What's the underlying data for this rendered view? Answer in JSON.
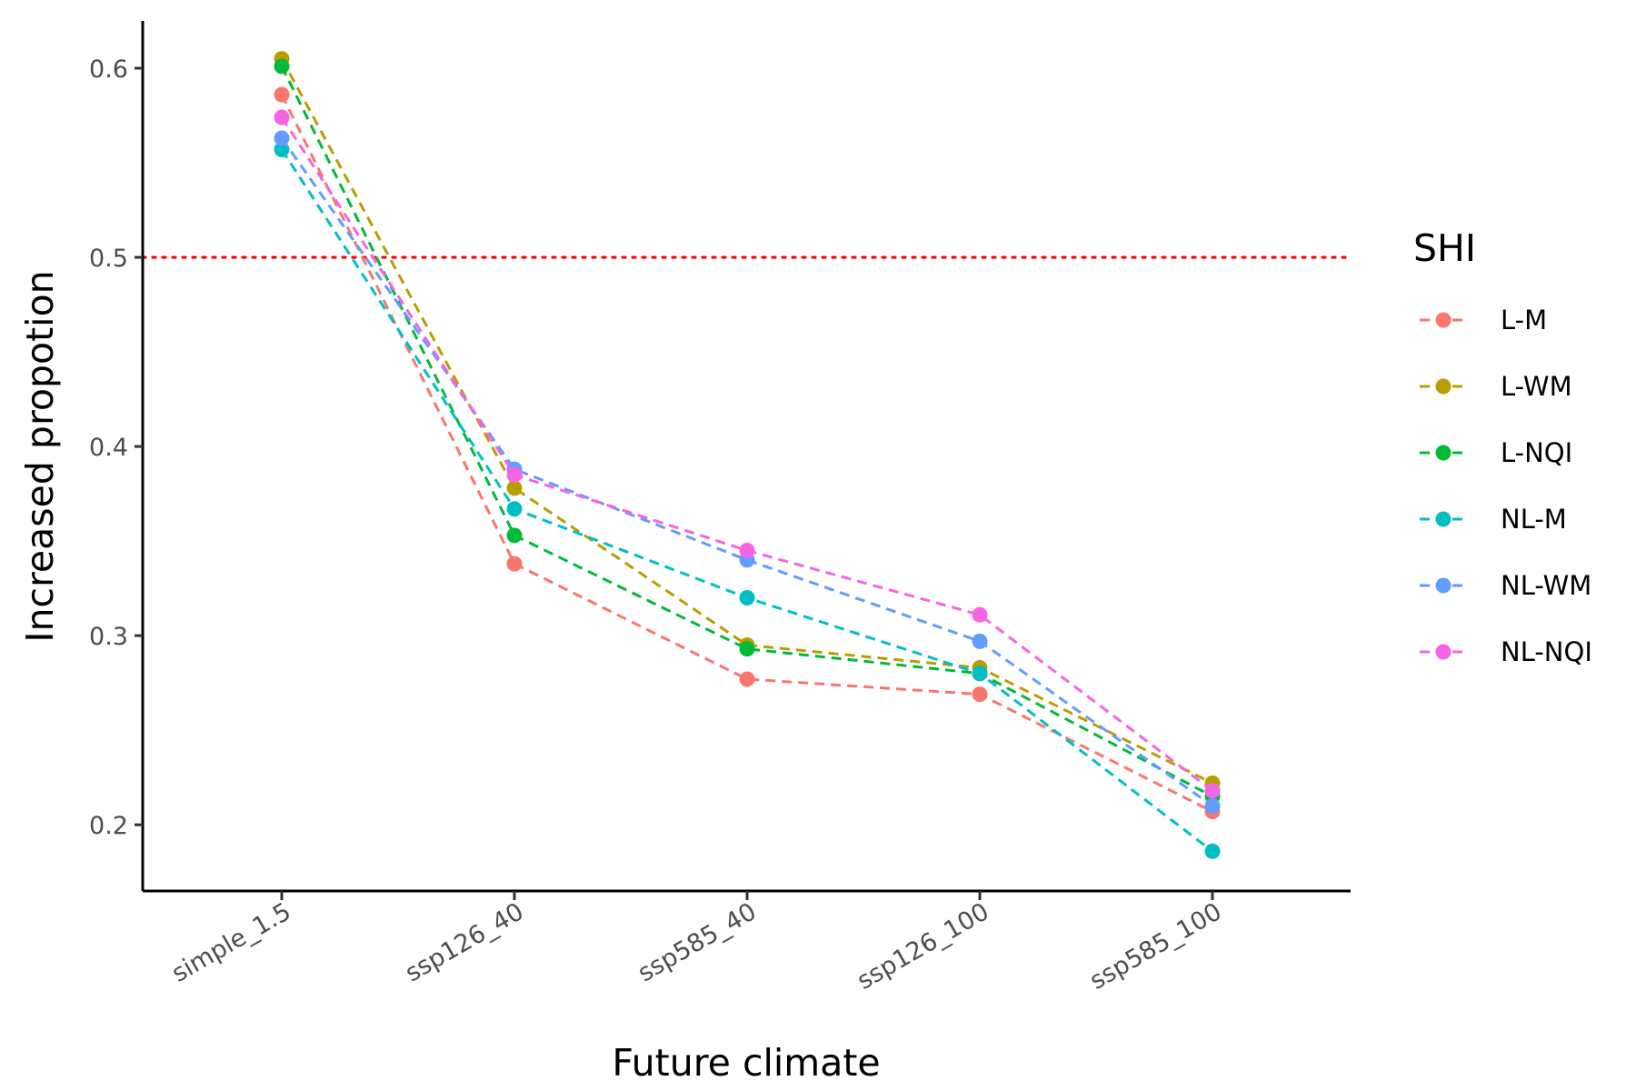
{
  "chart_data": {
    "type": "line",
    "xlabel": "Future climate",
    "ylabel": "Increased propotion",
    "categories": [
      "simple_1.5",
      "ssp126_40",
      "ssp585_40",
      "ssp126_100",
      "ssp585_100"
    ],
    "ylim": [
      0.165,
      0.625
    ],
    "yticks": [
      0.2,
      0.3,
      0.4,
      0.5,
      0.6
    ],
    "ytick_labels": [
      "0.2",
      "0.3",
      "0.4",
      "0.5",
      "0.6"
    ],
    "reference_line": {
      "y": 0.5,
      "color": "#FF0000",
      "style": "dotted"
    },
    "grid": false,
    "line_style": "dashed",
    "legend": {
      "title": "SHI",
      "position": "right"
    },
    "series": [
      {
        "name": "L-M",
        "color": "#F8766D",
        "values": [
          0.586,
          0.338,
          0.277,
          0.269,
          0.207
        ]
      },
      {
        "name": "L-WM",
        "color": "#B79F00",
        "values": [
          0.605,
          0.378,
          0.295,
          0.283,
          0.222
        ]
      },
      {
        "name": "L-NQI",
        "color": "#00BA38",
        "values": [
          0.601,
          0.353,
          0.293,
          0.28,
          0.215
        ]
      },
      {
        "name": "NL-M",
        "color": "#00BFC4",
        "values": [
          0.557,
          0.367,
          0.32,
          0.28,
          0.186
        ]
      },
      {
        "name": "NL-WM",
        "color": "#619CFF",
        "values": [
          0.563,
          0.388,
          0.34,
          0.297,
          0.21
        ]
      },
      {
        "name": "NL-NQI",
        "color": "#F564E3",
        "values": [
          0.574,
          0.385,
          0.345,
          0.311,
          0.218
        ]
      }
    ]
  }
}
